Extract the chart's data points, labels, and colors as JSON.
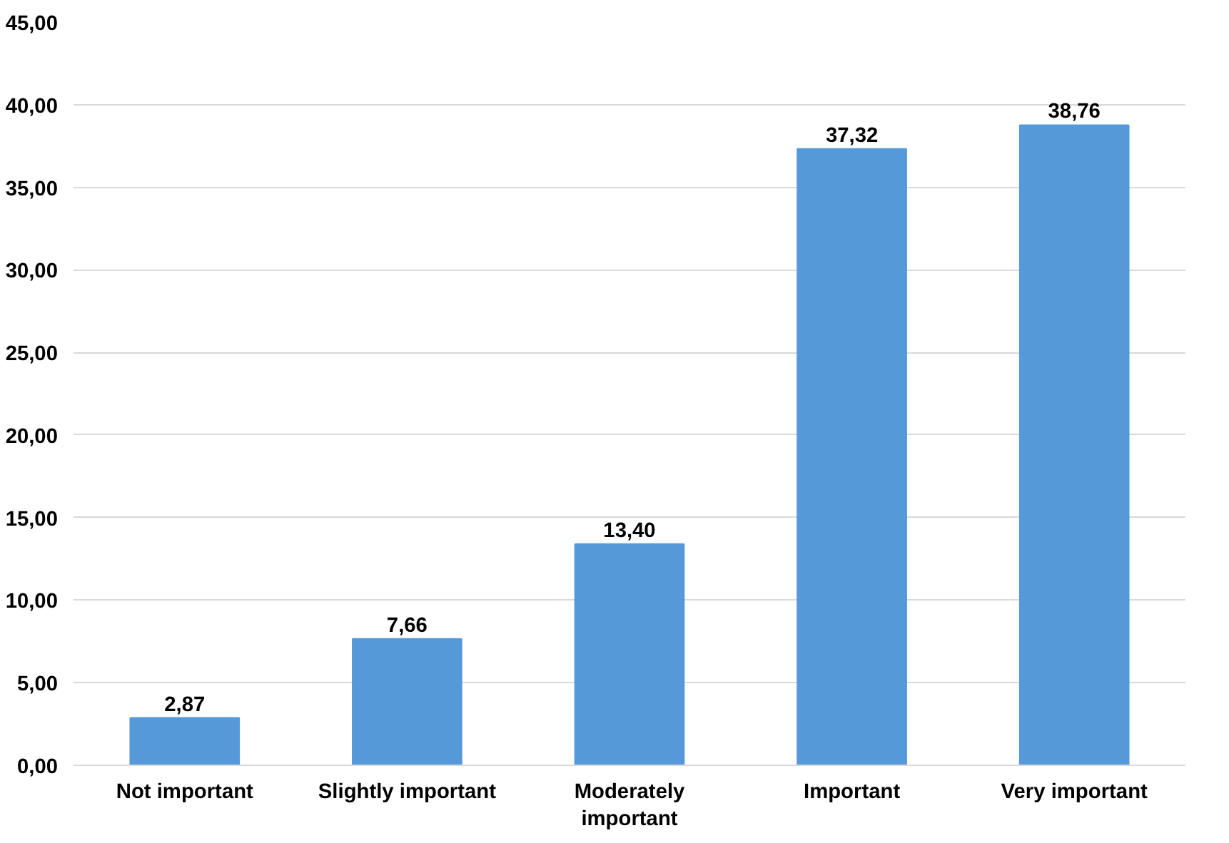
{
  "chart_data": {
    "type": "bar",
    "categories": [
      "Not important",
      "Slightly important",
      "Moderately important",
      "Important",
      "Very important"
    ],
    "values": [
      2.87,
      7.66,
      13.4,
      37.32,
      38.76
    ],
    "value_labels": [
      "2,87",
      "7,66",
      "13,40",
      "37,32",
      "38,76"
    ],
    "color": "#5599d9",
    "ylim": [
      0,
      45
    ],
    "yticks": [
      {
        "value": 0,
        "label": "0,00"
      },
      {
        "value": 5,
        "label": "5,00"
      },
      {
        "value": 10,
        "label": "10,00"
      },
      {
        "value": 15,
        "label": "15,00"
      },
      {
        "value": 20,
        "label": "20,00"
      },
      {
        "value": 25,
        "label": "25,00"
      },
      {
        "value": 30,
        "label": "30,00"
      },
      {
        "value": 35,
        "label": "35,00"
      },
      {
        "value": 40,
        "label": "40,00"
      },
      {
        "value": 45,
        "label": "45,00"
      }
    ],
    "grid": "y"
  }
}
